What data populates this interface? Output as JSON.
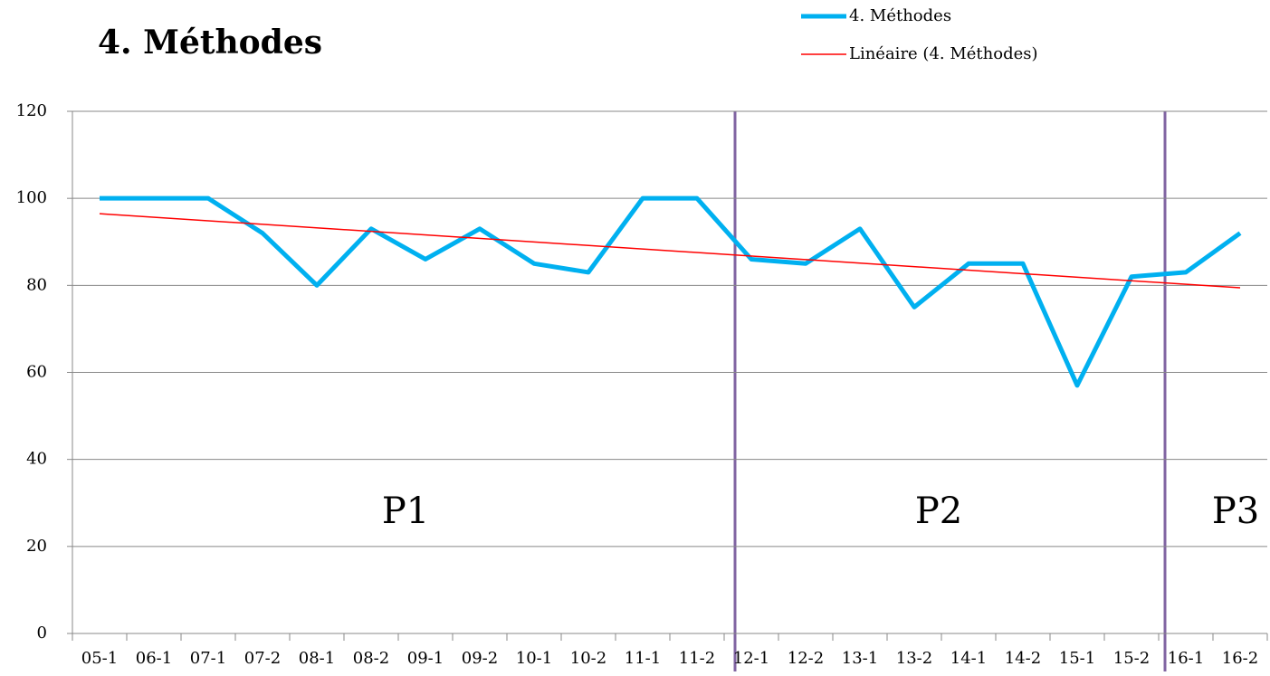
{
  "chart_data": {
    "type": "line",
    "title": "4. Méthodes",
    "categories": [
      "05-1",
      "06-1",
      "07-1",
      "07-2",
      "08-1",
      "08-2",
      "09-1",
      "09-2",
      "10-1",
      "10-2",
      "11-1",
      "11-2",
      "12-1",
      "12-2",
      "13-1",
      "13-2",
      "14-1",
      "14-2",
      "15-1",
      "15-2",
      "16-1",
      "16-2"
    ],
    "series": [
      {
        "name": "4. Méthodes",
        "color": "#00b0f0",
        "values": [
          100,
          100,
          100,
          92,
          80,
          93,
          86,
          93,
          85,
          83,
          100,
          100,
          86,
          85,
          93,
          75,
          85,
          85,
          57,
          82,
          83,
          92
        ]
      }
    ],
    "trendline": {
      "name": "Linéaire (4. Méthodes)",
      "color": "#ff0000"
    },
    "ylim": [
      0,
      120
    ],
    "yticks": [
      0,
      20,
      40,
      60,
      80,
      100,
      120
    ],
    "grid": true,
    "annotations": [
      "P1",
      "P2",
      "P3"
    ]
  }
}
